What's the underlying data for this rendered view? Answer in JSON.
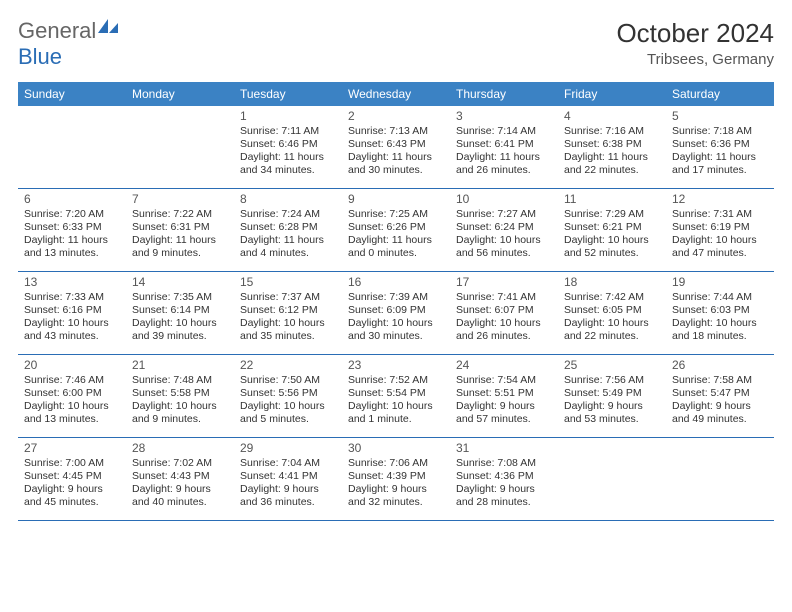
{
  "brand": {
    "part1": "General",
    "part2": "Blue"
  },
  "title": "October 2024",
  "location": "Tribsees, Germany",
  "colors": {
    "header_bg": "#3b82c4",
    "header_text": "#ffffff",
    "border": "#2a6db5",
    "logo_gray": "#666666",
    "logo_blue": "#2a6db5",
    "page_bg": "#ffffff",
    "body_text": "#333333"
  },
  "typography": {
    "title_fontsize": 26,
    "location_fontsize": 15,
    "dayheader_fontsize": 12,
    "cell_fontsize": 10.5
  },
  "calendar": {
    "columns": [
      "Sunday",
      "Monday",
      "Tuesday",
      "Wednesday",
      "Thursday",
      "Friday",
      "Saturday"
    ],
    "weeks": [
      [
        null,
        null,
        {
          "n": "1",
          "sr": "Sunrise: 7:11 AM",
          "ss": "Sunset: 6:46 PM",
          "d1": "Daylight: 11 hours",
          "d2": "and 34 minutes."
        },
        {
          "n": "2",
          "sr": "Sunrise: 7:13 AM",
          "ss": "Sunset: 6:43 PM",
          "d1": "Daylight: 11 hours",
          "d2": "and 30 minutes."
        },
        {
          "n": "3",
          "sr": "Sunrise: 7:14 AM",
          "ss": "Sunset: 6:41 PM",
          "d1": "Daylight: 11 hours",
          "d2": "and 26 minutes."
        },
        {
          "n": "4",
          "sr": "Sunrise: 7:16 AM",
          "ss": "Sunset: 6:38 PM",
          "d1": "Daylight: 11 hours",
          "d2": "and 22 minutes."
        },
        {
          "n": "5",
          "sr": "Sunrise: 7:18 AM",
          "ss": "Sunset: 6:36 PM",
          "d1": "Daylight: 11 hours",
          "d2": "and 17 minutes."
        }
      ],
      [
        {
          "n": "6",
          "sr": "Sunrise: 7:20 AM",
          "ss": "Sunset: 6:33 PM",
          "d1": "Daylight: 11 hours",
          "d2": "and 13 minutes."
        },
        {
          "n": "7",
          "sr": "Sunrise: 7:22 AM",
          "ss": "Sunset: 6:31 PM",
          "d1": "Daylight: 11 hours",
          "d2": "and 9 minutes."
        },
        {
          "n": "8",
          "sr": "Sunrise: 7:24 AM",
          "ss": "Sunset: 6:28 PM",
          "d1": "Daylight: 11 hours",
          "d2": "and 4 minutes."
        },
        {
          "n": "9",
          "sr": "Sunrise: 7:25 AM",
          "ss": "Sunset: 6:26 PM",
          "d1": "Daylight: 11 hours",
          "d2": "and 0 minutes."
        },
        {
          "n": "10",
          "sr": "Sunrise: 7:27 AM",
          "ss": "Sunset: 6:24 PM",
          "d1": "Daylight: 10 hours",
          "d2": "and 56 minutes."
        },
        {
          "n": "11",
          "sr": "Sunrise: 7:29 AM",
          "ss": "Sunset: 6:21 PM",
          "d1": "Daylight: 10 hours",
          "d2": "and 52 minutes."
        },
        {
          "n": "12",
          "sr": "Sunrise: 7:31 AM",
          "ss": "Sunset: 6:19 PM",
          "d1": "Daylight: 10 hours",
          "d2": "and 47 minutes."
        }
      ],
      [
        {
          "n": "13",
          "sr": "Sunrise: 7:33 AM",
          "ss": "Sunset: 6:16 PM",
          "d1": "Daylight: 10 hours",
          "d2": "and 43 minutes."
        },
        {
          "n": "14",
          "sr": "Sunrise: 7:35 AM",
          "ss": "Sunset: 6:14 PM",
          "d1": "Daylight: 10 hours",
          "d2": "and 39 minutes."
        },
        {
          "n": "15",
          "sr": "Sunrise: 7:37 AM",
          "ss": "Sunset: 6:12 PM",
          "d1": "Daylight: 10 hours",
          "d2": "and 35 minutes."
        },
        {
          "n": "16",
          "sr": "Sunrise: 7:39 AM",
          "ss": "Sunset: 6:09 PM",
          "d1": "Daylight: 10 hours",
          "d2": "and 30 minutes."
        },
        {
          "n": "17",
          "sr": "Sunrise: 7:41 AM",
          "ss": "Sunset: 6:07 PM",
          "d1": "Daylight: 10 hours",
          "d2": "and 26 minutes."
        },
        {
          "n": "18",
          "sr": "Sunrise: 7:42 AM",
          "ss": "Sunset: 6:05 PM",
          "d1": "Daylight: 10 hours",
          "d2": "and 22 minutes."
        },
        {
          "n": "19",
          "sr": "Sunrise: 7:44 AM",
          "ss": "Sunset: 6:03 PM",
          "d1": "Daylight: 10 hours",
          "d2": "and 18 minutes."
        }
      ],
      [
        {
          "n": "20",
          "sr": "Sunrise: 7:46 AM",
          "ss": "Sunset: 6:00 PM",
          "d1": "Daylight: 10 hours",
          "d2": "and 13 minutes."
        },
        {
          "n": "21",
          "sr": "Sunrise: 7:48 AM",
          "ss": "Sunset: 5:58 PM",
          "d1": "Daylight: 10 hours",
          "d2": "and 9 minutes."
        },
        {
          "n": "22",
          "sr": "Sunrise: 7:50 AM",
          "ss": "Sunset: 5:56 PM",
          "d1": "Daylight: 10 hours",
          "d2": "and 5 minutes."
        },
        {
          "n": "23",
          "sr": "Sunrise: 7:52 AM",
          "ss": "Sunset: 5:54 PM",
          "d1": "Daylight: 10 hours",
          "d2": "and 1 minute."
        },
        {
          "n": "24",
          "sr": "Sunrise: 7:54 AM",
          "ss": "Sunset: 5:51 PM",
          "d1": "Daylight: 9 hours",
          "d2": "and 57 minutes."
        },
        {
          "n": "25",
          "sr": "Sunrise: 7:56 AM",
          "ss": "Sunset: 5:49 PM",
          "d1": "Daylight: 9 hours",
          "d2": "and 53 minutes."
        },
        {
          "n": "26",
          "sr": "Sunrise: 7:58 AM",
          "ss": "Sunset: 5:47 PM",
          "d1": "Daylight: 9 hours",
          "d2": "and 49 minutes."
        }
      ],
      [
        {
          "n": "27",
          "sr": "Sunrise: 7:00 AM",
          "ss": "Sunset: 4:45 PM",
          "d1": "Daylight: 9 hours",
          "d2": "and 45 minutes."
        },
        {
          "n": "28",
          "sr": "Sunrise: 7:02 AM",
          "ss": "Sunset: 4:43 PM",
          "d1": "Daylight: 9 hours",
          "d2": "and 40 minutes."
        },
        {
          "n": "29",
          "sr": "Sunrise: 7:04 AM",
          "ss": "Sunset: 4:41 PM",
          "d1": "Daylight: 9 hours",
          "d2": "and 36 minutes."
        },
        {
          "n": "30",
          "sr": "Sunrise: 7:06 AM",
          "ss": "Sunset: 4:39 PM",
          "d1": "Daylight: 9 hours",
          "d2": "and 32 minutes."
        },
        {
          "n": "31",
          "sr": "Sunrise: 7:08 AM",
          "ss": "Sunset: 4:36 PM",
          "d1": "Daylight: 9 hours",
          "d2": "and 28 minutes."
        },
        null,
        null
      ]
    ]
  }
}
